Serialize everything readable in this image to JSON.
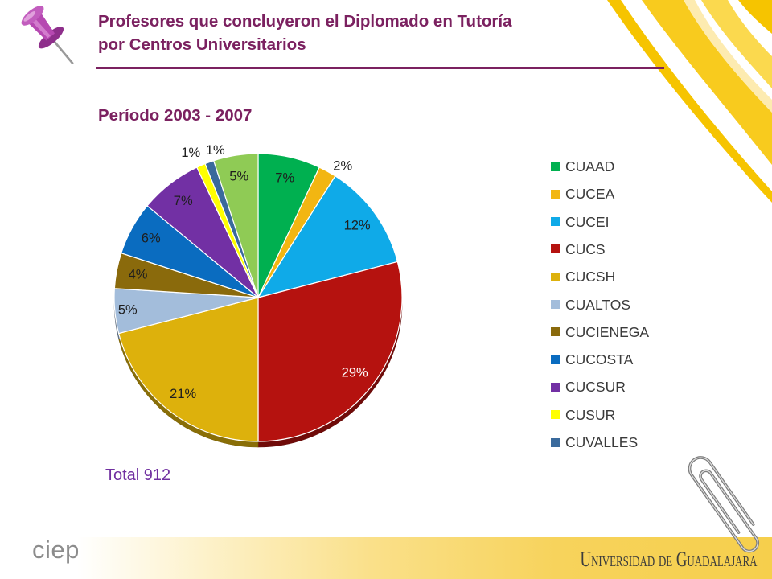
{
  "slide": {
    "title_line1": "Profesores que concluyeron el Diplomado en Tutoría",
    "title_line2": "por Centros Universitarios",
    "period": "Período 2003 - 2007",
    "total": "Total 912"
  },
  "branding": {
    "left_logo": "ciep",
    "right_logo": "Universidad de Guadalajara"
  },
  "icons": {
    "top_left": "pushpin-icon",
    "bottom_right": "paperclip-icon"
  },
  "colors": {
    "title": "#7B2160",
    "title_rule": "#7B2160",
    "total": "#7030A0",
    "corner_decoration": "#F6C400",
    "footer_band": "#F6CF4C"
  },
  "chart_data": {
    "type": "pie",
    "title": "",
    "categories": [
      "CUAAD",
      "CUCEA",
      "CUCEI",
      "CUCS",
      "CUCSH",
      "CUALTOS",
      "CUCIENEGA",
      "CUCOSTA",
      "CUCSUR",
      "CUSUR",
      "CUVALLES",
      ""
    ],
    "values": [
      7,
      2,
      12,
      29,
      21,
      5,
      4,
      6,
      7,
      1,
      1,
      5
    ],
    "data_labels": [
      "7%",
      "2%",
      "12%",
      "29%",
      "21%",
      "5%",
      "4%",
      "6%",
      "7%",
      "1%",
      "1%",
      "5%"
    ],
    "colors": [
      "#00B050",
      "#F2B612",
      "#0FAAE8",
      "#B5120F",
      "#DDB10C",
      "#A3BDDB",
      "#8A6A0C",
      "#0A6CC0",
      "#7230A4",
      "#FFFF00",
      "#3A6A9C",
      "#8FCB55"
    ],
    "legend_position": "right"
  }
}
